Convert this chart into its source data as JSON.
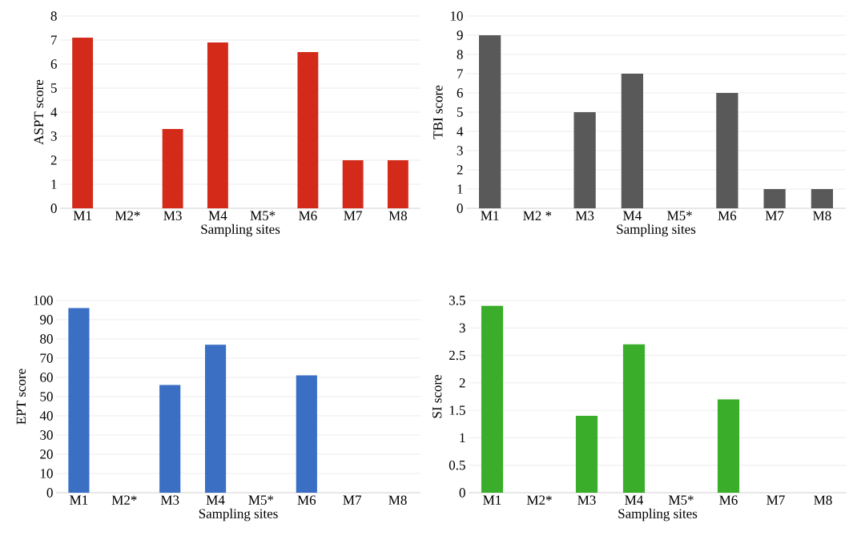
{
  "chart_data": [
    {
      "type": "bar",
      "categories": [
        "M1",
        "M2*",
        "M3",
        "M4",
        "M5*",
        "M6",
        "M7",
        "M8"
      ],
      "values": [
        7.1,
        null,
        3.3,
        6.9,
        null,
        6.5,
        2,
        2
      ],
      "color": "#d42a1a",
      "xlabel": "Sampling sites",
      "ylabel": "ASPT score",
      "ylim": [
        0,
        8
      ],
      "yticks": [
        0,
        1,
        2,
        3,
        4,
        5,
        6,
        7,
        8
      ],
      "grid": "y"
    },
    {
      "type": "bar",
      "categories": [
        "M1",
        "M2 *",
        "M3",
        "M4",
        "M5*",
        "M6",
        "M7",
        "M8"
      ],
      "values": [
        9,
        null,
        5,
        7,
        null,
        6,
        1,
        1
      ],
      "color": "#595959",
      "xlabel": "Sampling sites",
      "ylabel": "TBI score",
      "ylim": [
        0,
        10
      ],
      "yticks": [
        0,
        1,
        2,
        3,
        4,
        5,
        6,
        7,
        8,
        9,
        10
      ],
      "grid": "y"
    },
    {
      "type": "bar",
      "categories": [
        "M1",
        "M2*",
        "M3",
        "M4",
        "M5*",
        "M6",
        "M7",
        "M8"
      ],
      "values": [
        96,
        null,
        56,
        77,
        null,
        61,
        null,
        null
      ],
      "color": "#3a6fc4",
      "xlabel": "Sampling sites",
      "ylabel": "EPT score",
      "ylim": [
        0,
        100
      ],
      "yticks": [
        0,
        10,
        20,
        30,
        40,
        50,
        60,
        70,
        80,
        90,
        100
      ],
      "grid": "y"
    },
    {
      "type": "bar",
      "categories": [
        "M1",
        "M2*",
        "M3",
        "M4",
        "M5*",
        "M6",
        "M7",
        "M8"
      ],
      "values": [
        3.4,
        null,
        1.4,
        2.7,
        null,
        1.7,
        null,
        null
      ],
      "color": "#3aae2a",
      "xlabel": "Sampling sites",
      "ylabel": "SI score",
      "ylim": [
        0,
        3.5
      ],
      "yticks": [
        0,
        0.5,
        1,
        1.5,
        2,
        2.5,
        3,
        3.5
      ],
      "grid": "y"
    }
  ]
}
